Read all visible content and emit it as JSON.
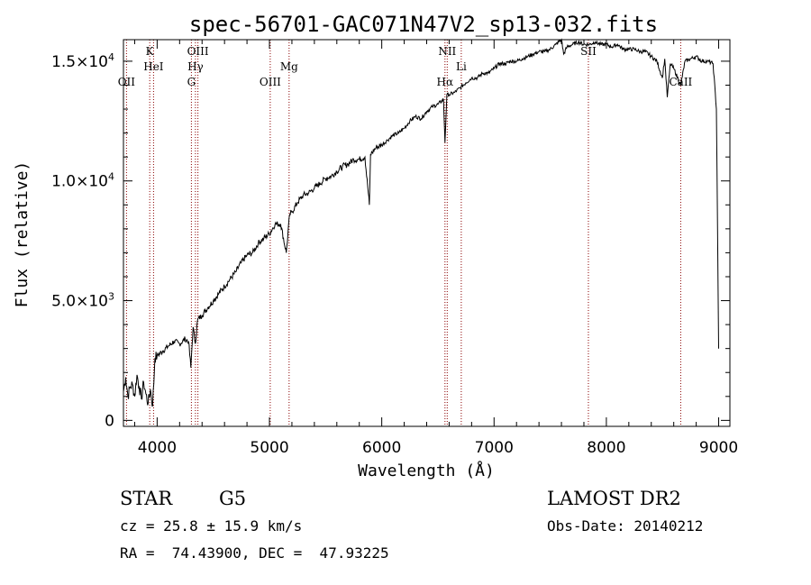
{
  "chart_data": {
    "type": "line",
    "title": "spec-56701-GAC071N47V2_sp13-032.fits",
    "xlabel": "Wavelength (Å)",
    "ylabel": "Flux (relative)",
    "xlim": [
      3700,
      9100
    ],
    "ylim": [
      -250,
      15900
    ],
    "x_ticks": [
      {
        "value": 4000,
        "label": "4000"
      },
      {
        "value": 5000,
        "label": "5000"
      },
      {
        "value": 6000,
        "label": "6000"
      },
      {
        "value": 7000,
        "label": "7000"
      },
      {
        "value": 8000,
        "label": "8000"
      },
      {
        "value": 9000,
        "label": "9000"
      }
    ],
    "y_ticks": [
      {
        "value": 0,
        "label": "0"
      },
      {
        "value": 5000,
        "label": "5.0×10",
        "exp": "3"
      },
      {
        "value": 10000,
        "label": "1.0×10",
        "exp": "4"
      },
      {
        "value": 15000,
        "label": "1.5×10",
        "exp": "4"
      }
    ],
    "line_color": "#000000",
    "marker_color": "#8b0000",
    "series": [
      {
        "x": [
          3700,
          3720,
          3740,
          3760,
          3780,
          3800,
          3820,
          3840,
          3860,
          3880,
          3900,
          3920,
          3940,
          3960,
          3980,
          4000,
          4050,
          4100,
          4150,
          4200,
          4250,
          4280,
          4300,
          4320,
          4340,
          4360,
          4400,
          4450,
          4500,
          4550,
          4600,
          4650,
          4700,
          4750,
          4800,
          4850,
          4900,
          4950,
          5000,
          5050,
          5100,
          5150,
          5180,
          5200,
          5250,
          5300,
          5350,
          5400,
          5450,
          5500,
          5550,
          5600,
          5650,
          5700,
          5750,
          5800,
          5850,
          5890,
          5900,
          5950,
          6000,
          6050,
          6100,
          6150,
          6200,
          6250,
          6300,
          6350,
          6400,
          6450,
          6500,
          6550,
          6563,
          6580,
          6600,
          6650,
          6700,
          6750,
          6800,
          6850,
          6900,
          6950,
          7000,
          7050,
          7100,
          7150,
          7200,
          7250,
          7300,
          7350,
          7400,
          7450,
          7500,
          7550,
          7600,
          7620,
          7650,
          7700,
          7750,
          7800,
          7850,
          7900,
          7950,
          8000,
          8050,
          8100,
          8150,
          8200,
          8250,
          8300,
          8350,
          8400,
          8450,
          8498,
          8520,
          8542,
          8570,
          8600,
          8662,
          8700,
          8750,
          8800,
          8850,
          8900,
          8950,
          8980,
          9000
        ],
        "y": [
          1200,
          1800,
          1000,
          1400,
          1500,
          1000,
          1900,
          1400,
          900,
          1600,
          1100,
          700,
          1300,
          600,
          2600,
          2700,
          2900,
          3100,
          3300,
          3200,
          3400,
          3300,
          2200,
          3900,
          3200,
          4200,
          4400,
          4700,
          5000,
          5300,
          5600,
          5900,
          6200,
          6600,
          6900,
          7000,
          7400,
          7600,
          7800,
          8200,
          8200,
          7000,
          8600,
          8700,
          9100,
          9400,
          9500,
          9700,
          9900,
          10100,
          10200,
          10400,
          10600,
          10700,
          10900,
          10900,
          11000,
          9000,
          11100,
          11400,
          11500,
          11700,
          11900,
          12000,
          12200,
          12500,
          12700,
          12600,
          12900,
          13100,
          13200,
          13400,
          11600,
          13600,
          13600,
          13700,
          13900,
          14100,
          14300,
          14300,
          14500,
          14500,
          14700,
          14900,
          14900,
          15000,
          15000,
          15100,
          15200,
          15300,
          15400,
          15400,
          15500,
          15700,
          15900,
          15300,
          15600,
          15700,
          15800,
          15700,
          15700,
          15800,
          15700,
          15700,
          15600,
          15700,
          15500,
          15500,
          15500,
          15400,
          15400,
          15200,
          15000,
          14300,
          15100,
          13500,
          14900,
          14700,
          14000,
          15000,
          15100,
          15200,
          15000,
          15000,
          14900,
          13000,
          3000
        ]
      }
    ],
    "line_markers": [
      {
        "label": "OII",
        "x": 3727,
        "row": 3
      },
      {
        "label": "K",
        "x": 3934,
        "row": 1
      },
      {
        "label": "HeI",
        "x": 3968,
        "row": 2
      },
      {
        "label": "G",
        "x": 4305,
        "row": 3
      },
      {
        "label": "Hγ",
        "x": 4341,
        "row": 2
      },
      {
        "label": "OIII",
        "x": 4363,
        "row": 1
      },
      {
        "label": "OIII",
        "x": 5007,
        "row": 3
      },
      {
        "label": "Mg",
        "x": 5175,
        "row": 2
      },
      {
        "label": "Hα",
        "x": 6563,
        "row": 3
      },
      {
        "label": "NII",
        "x": 6583,
        "row": 1
      },
      {
        "label": "Li",
        "x": 6708,
        "row": 2
      },
      {
        "label": "SII",
        "x": 7840,
        "row": 1
      },
      {
        "label": "CaII",
        "x": 8662,
        "row": 3
      }
    ]
  },
  "info": {
    "object": "STAR",
    "subclass": "G5",
    "survey": "LAMOST DR2",
    "cz": "cz = 25.8 ± 15.9 km/s",
    "obs_date": "Obs-Date: 20140212",
    "coords": "RA =  74.43900, DEC =  47.93225"
  }
}
